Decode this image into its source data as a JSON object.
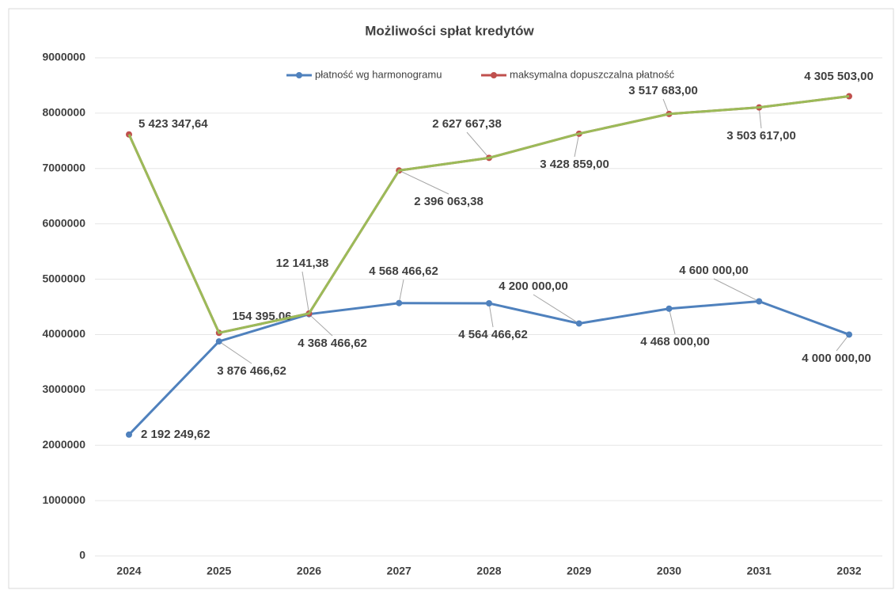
{
  "chart_data": {
    "type": "line",
    "stacked": true,
    "title": "Możliwości spłat kredytów",
    "categories": [
      "2024",
      "2025",
      "2026",
      "2027",
      "2028",
      "2029",
      "2030",
      "2031",
      "2032"
    ],
    "series": [
      {
        "name": "płatność wg harmonogramu",
        "color": "#4f81bd",
        "values": [
          2192249.62,
          3876466.62,
          4368466.62,
          4568466.62,
          4564466.62,
          4200000,
          4468000,
          4600000,
          4000000
        ],
        "value_labels": [
          "2 192 249,62",
          "3 876 466,62",
          "4 368 466,62",
          "4 568 466,62",
          "4 564 466,62",
          "4 200 000,00",
          "4 468 000,00",
          "4 600 000,00",
          "4 000 000,00"
        ]
      },
      {
        "name": "maksymalna dopuszczalna płatność",
        "color": "#c0504d",
        "values": [
          5423347.64,
          154395.06,
          12141.38,
          2396063.38,
          2627667.38,
          3428859,
          3517683,
          3503617,
          4305503
        ],
        "value_labels": [
          "5 423 347,64",
          "154 395,06",
          "12 141,38",
          "2 396 063,38",
          "2 627 667,38",
          "3 428 859,00",
          "3 517 683,00",
          "3 503 617,00",
          "4 305 503,00"
        ]
      },
      {
        "color": "#9bbb59",
        "values": [
          0,
          0,
          0,
          0,
          0,
          0,
          0,
          0,
          0
        ]
      }
    ],
    "ylim": [
      0,
      9000000
    ],
    "yticks": [
      0,
      1000000,
      2000000,
      3000000,
      4000000,
      5000000,
      6000000,
      7000000,
      8000000,
      9000000
    ],
    "grid": true,
    "legend": "top"
  }
}
